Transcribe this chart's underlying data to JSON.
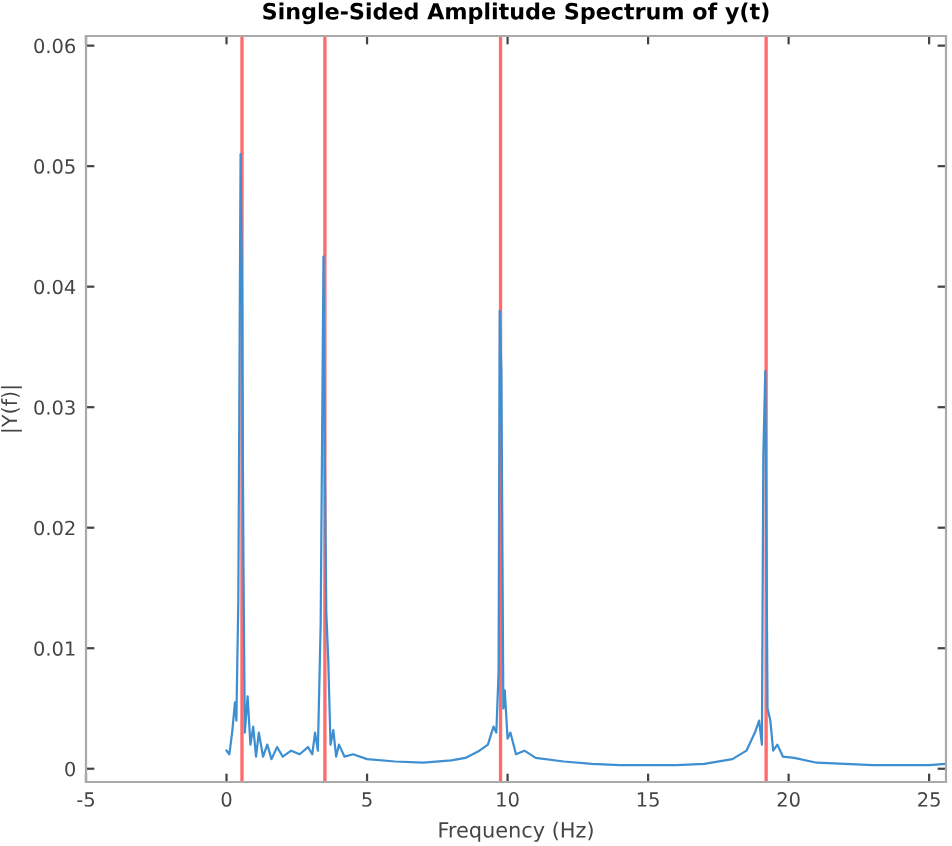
{
  "chart_data": {
    "type": "line",
    "title": "Single-Sided Amplitude Spectrum of y(t)",
    "xlabel": "Frequency (Hz)",
    "ylabel": "|Y(f)|",
    "series": [
      {
        "color": "#3d8fd1",
        "x": [
          0,
          0.1,
          0.2,
          0.3,
          0.35,
          0.42,
          0.5,
          0.55,
          0.6,
          0.65,
          0.75,
          0.85,
          0.95,
          1.05,
          1.15,
          1.3,
          1.45,
          1.6,
          1.8,
          2.0,
          2.3,
          2.6,
          2.9,
          3.05,
          3.15,
          3.25,
          3.35,
          3.45,
          3.5,
          3.55,
          3.62,
          3.7,
          3.8,
          3.9,
          4.0,
          4.2,
          4.5,
          5,
          6,
          7,
          8,
          8.5,
          9,
          9.3,
          9.5,
          9.6,
          9.68,
          9.72,
          9.78,
          9.85,
          9.9,
          10,
          10.1,
          10.3,
          10.6,
          11,
          12,
          13,
          14,
          15,
          16,
          17,
          18,
          18.5,
          18.8,
          18.95,
          19.05,
          19.1,
          19.17,
          19.25,
          19.35,
          19.45,
          19.6,
          19.8,
          20.2,
          21,
          22,
          23,
          24,
          25,
          25.6
        ],
        "values": [
          0.0015,
          0.0012,
          0.003,
          0.0055,
          0.004,
          0.014,
          0.051,
          0.04,
          0.018,
          0.003,
          0.006,
          0.002,
          0.0035,
          0.001,
          0.003,
          0.001,
          0.002,
          0.0008,
          0.0018,
          0.001,
          0.0015,
          0.0012,
          0.0018,
          0.0012,
          0.003,
          0.0015,
          0.012,
          0.0425,
          0.025,
          0.013,
          0.009,
          0.002,
          0.0032,
          0.001,
          0.002,
          0.001,
          0.0012,
          0.0008,
          0.0006,
          0.0005,
          0.0007,
          0.0009,
          0.0015,
          0.002,
          0.0035,
          0.003,
          0.008,
          0.038,
          0.033,
          0.005,
          0.0065,
          0.0025,
          0.003,
          0.0012,
          0.0015,
          0.0009,
          0.0006,
          0.0004,
          0.0003,
          0.0003,
          0.0003,
          0.0004,
          0.0008,
          0.0015,
          0.003,
          0.004,
          0.002,
          0.026,
          0.033,
          0.005,
          0.004,
          0.0015,
          0.002,
          0.001,
          0.0009,
          0.0005,
          0.0004,
          0.0003,
          0.0003,
          0.0003,
          0.0004
        ]
      }
    ],
    "ref_lines": [
      {
        "axis": "x",
        "value": 0.55,
        "color": "#ff6b6b"
      },
      {
        "axis": "x",
        "value": 3.5,
        "color": "#ff6b6b"
      },
      {
        "axis": "x",
        "value": 9.75,
        "color": "#ff6b6b"
      },
      {
        "axis": "x",
        "value": 19.2,
        "color": "#ff6b6b"
      }
    ],
    "xlim": [
      -5,
      25.6
    ],
    "xticks": [
      -5,
      0,
      5,
      10,
      15,
      20,
      25
    ],
    "ylim": [
      -0.0011,
      0.0608
    ],
    "yticks": [
      0,
      0.01,
      0.02,
      0.03,
      0.04,
      0.05,
      0.06
    ],
    "grid": false,
    "legend": false
  }
}
